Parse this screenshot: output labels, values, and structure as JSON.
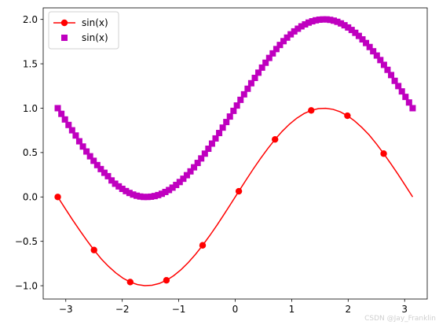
{
  "chart_data": {
    "type": "line",
    "title": "",
    "xlabel": "",
    "ylabel": "",
    "xlim": [
      -3.4,
      3.4
    ],
    "ylim": [
      -1.15,
      2.13
    ],
    "x_ticks": [
      -3,
      -2,
      -1,
      0,
      1,
      2,
      3
    ],
    "x_tick_labels": [
      "−3",
      "−2",
      "−1",
      "0",
      "1",
      "2",
      "3"
    ],
    "y_ticks": [
      -1.0,
      -0.5,
      0.0,
      0.5,
      1.0,
      1.5,
      2.0
    ],
    "y_tick_labels": [
      "−1.0",
      "−0.5",
      "0.0",
      "0.5",
      "1.0",
      "1.5",
      "2.0"
    ],
    "grid": false,
    "legend_position": "top-left",
    "series": [
      {
        "name": "sin(x)",
        "style": "line-with-circle-markers",
        "color": "#ff0000",
        "line_x": [
          -3.142,
          -3.013,
          -2.885,
          -2.757,
          -2.629,
          -2.5,
          -2.372,
          -2.244,
          -2.116,
          -1.987,
          -1.859,
          -1.731,
          -1.603,
          -1.474,
          -1.346,
          -1.218,
          -1.09,
          -0.961,
          -0.833,
          -0.705,
          -0.577,
          -0.448,
          -0.32,
          -0.192,
          -0.064,
          0.064,
          0.192,
          0.32,
          0.448,
          0.577,
          0.705,
          0.833,
          0.961,
          1.09,
          1.218,
          1.346,
          1.474,
          1.603,
          1.731,
          1.859,
          1.987,
          2.116,
          2.244,
          2.372,
          2.5,
          2.629,
          2.757,
          2.885,
          3.013,
          3.142
        ],
        "line_y": [
          0.0,
          -0.128,
          -0.253,
          -0.373,
          -0.488,
          -0.598,
          -0.698,
          -0.782,
          -0.855,
          -0.915,
          -0.959,
          -0.987,
          -0.999,
          -0.995,
          -0.975,
          -0.939,
          -0.887,
          -0.82,
          -0.74,
          -0.648,
          -0.545,
          -0.433,
          -0.315,
          -0.191,
          -0.064,
          0.064,
          0.191,
          0.315,
          0.433,
          0.545,
          0.648,
          0.74,
          0.82,
          0.887,
          0.939,
          0.975,
          0.995,
          0.999,
          0.987,
          0.959,
          0.915,
          0.855,
          0.782,
          0.698,
          0.598,
          0.488,
          0.373,
          0.253,
          0.128,
          0.0
        ],
        "marker_x": [
          -3.142,
          -2.5,
          -1.859,
          -1.218,
          -0.577,
          0.064,
          0.705,
          1.346,
          1.987,
          2.629
        ],
        "marker_y": [
          0.0,
          -0.598,
          -0.959,
          -0.939,
          -0.545,
          0.064,
          0.648,
          0.975,
          0.915,
          0.488
        ]
      },
      {
        "name": "sin(x)",
        "style": "square-markers",
        "color": "#bf00bf",
        "x": [
          -3.142,
          -3.078,
          -3.015,
          -2.951,
          -2.888,
          -2.824,
          -2.761,
          -2.697,
          -2.634,
          -2.57,
          -2.507,
          -2.443,
          -2.38,
          -2.316,
          -2.253,
          -2.189,
          -2.126,
          -2.062,
          -1.999,
          -1.935,
          -1.872,
          -1.808,
          -1.745,
          -1.681,
          -1.618,
          -1.554,
          -1.491,
          -1.427,
          -1.364,
          -1.3,
          -1.237,
          -1.173,
          -1.11,
          -1.046,
          -0.983,
          -0.919,
          -0.856,
          -0.792,
          -0.729,
          -0.665,
          -0.602,
          -0.538,
          -0.475,
          -0.411,
          -0.348,
          -0.284,
          -0.221,
          -0.157,
          -0.094,
          -0.03,
          0.03,
          0.094,
          0.157,
          0.221,
          0.284,
          0.348,
          0.411,
          0.475,
          0.538,
          0.602,
          0.665,
          0.729,
          0.792,
          0.856,
          0.919,
          0.983,
          1.046,
          1.11,
          1.173,
          1.237,
          1.3,
          1.364,
          1.427,
          1.491,
          1.554,
          1.618,
          1.681,
          1.745,
          1.808,
          1.872,
          1.935,
          1.999,
          2.062,
          2.126,
          2.189,
          2.253,
          2.316,
          2.38,
          2.443,
          2.507,
          2.57,
          2.634,
          2.697,
          2.761,
          2.824,
          2.888,
          2.951,
          3.015,
          3.078,
          3.142
        ],
        "y": [
          1.0,
          0.936,
          0.873,
          0.811,
          0.751,
          0.692,
          0.627,
          0.568,
          0.512,
          0.458,
          0.407,
          0.359,
          0.314,
          0.272,
          0.234,
          0.186,
          0.149,
          0.119,
          0.091,
          0.066,
          0.045,
          0.027,
          0.014,
          0.005,
          0.0,
          0.0,
          0.003,
          0.01,
          0.021,
          0.036,
          0.056,
          0.078,
          0.105,
          0.135,
          0.168,
          0.205,
          0.245,
          0.288,
          0.334,
          0.383,
          0.434,
          0.488,
          0.543,
          0.601,
          0.659,
          0.72,
          0.781,
          0.844,
          0.906,
          0.97,
          1.03,
          1.094,
          1.156,
          1.219,
          1.281,
          1.341,
          1.4,
          1.457,
          1.512,
          1.566,
          1.617,
          1.666,
          1.712,
          1.755,
          1.795,
          1.832,
          1.865,
          1.895,
          1.922,
          1.944,
          1.964,
          1.979,
          1.99,
          1.997,
          2.0,
          2.0,
          1.995,
          1.986,
          1.973,
          1.955,
          1.934,
          1.909,
          1.881,
          1.849,
          1.814,
          1.775,
          1.734,
          1.689,
          1.641,
          1.593,
          1.542,
          1.488,
          1.432,
          1.373,
          1.308,
          1.249,
          1.189,
          1.127,
          1.064,
          1.0
        ]
      }
    ]
  },
  "watermark": "CSDN @Jay_Franklin"
}
